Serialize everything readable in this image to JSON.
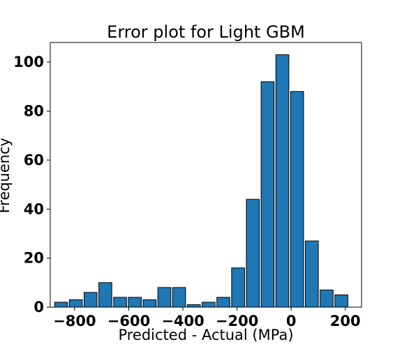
{
  "chart_data": {
    "type": "bar",
    "title": "Error plot for Light GBM",
    "xlabel": "Predicted - Actual (MPa)",
    "ylabel": "Frequency",
    "xlim": [
      -890,
      260
    ],
    "ylim": [
      0,
      108
    ],
    "x_ticks": [
      -800,
      -600,
      -400,
      -200,
      0,
      200
    ],
    "x_tick_labels": [
      "−800",
      "−600",
      "−400",
      "−200",
      "0",
      "200"
    ],
    "y_ticks": [
      0,
      20,
      40,
      60,
      80,
      100
    ],
    "y_tick_labels": [
      "0",
      "20",
      "40",
      "60",
      "80",
      "100"
    ],
    "bin_start": -850,
    "bin_width": 54.5,
    "bar_width_fraction": 0.88,
    "values": [
      2,
      3,
      6,
      10,
      4,
      4,
      3,
      8,
      8,
      1,
      2,
      4,
      16,
      44,
      92,
      103,
      88,
      27,
      7,
      5
    ],
    "bar_color": "#1f77b4",
    "edge_color": "#000000",
    "grid": false
  }
}
